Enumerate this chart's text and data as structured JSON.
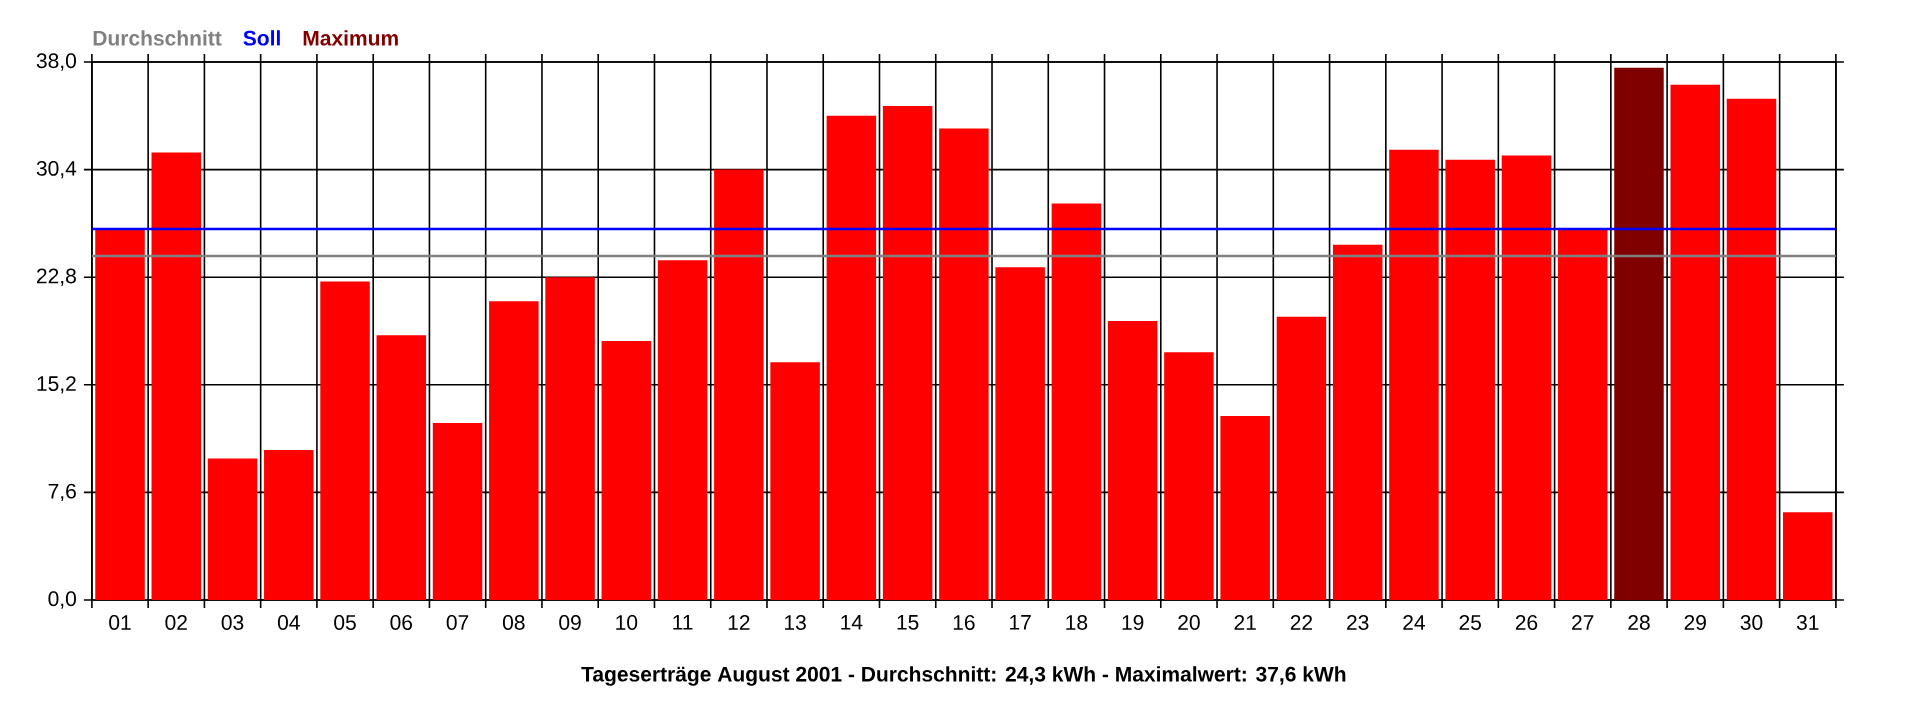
{
  "chart_data": {
    "type": "bar",
    "xlabel": "Tageserträge August 2001 - Durchschnitt: 24,3 kWh - Maximalwert: 37,6 kWh",
    "categories": [
      "01",
      "02",
      "03",
      "04",
      "05",
      "06",
      "07",
      "08",
      "09",
      "10",
      "11",
      "12",
      "13",
      "14",
      "15",
      "16",
      "17",
      "18",
      "19",
      "20",
      "21",
      "22",
      "23",
      "24",
      "25",
      "26",
      "27",
      "28",
      "29",
      "30",
      "31"
    ],
    "series": [
      {
        "color": "#ff0000",
        "values": [
          26.2,
          31.6,
          10.0,
          10.6,
          22.5,
          18.7,
          12.5,
          21.1,
          22.8,
          18.3,
          24.0,
          30.4,
          16.8,
          34.2,
          34.9,
          33.3,
          23.5,
          28.0,
          19.7,
          17.5,
          13.0,
          20.0,
          25.1,
          31.8,
          31.1,
          31.4,
          26.2,
          null,
          36.4,
          35.4,
          6.2
        ]
      },
      {
        "name": "Maximum",
        "color": "#800000",
        "values": [
          null,
          null,
          null,
          null,
          null,
          null,
          null,
          null,
          null,
          null,
          null,
          null,
          null,
          null,
          null,
          null,
          null,
          null,
          null,
          null,
          null,
          null,
          null,
          null,
          null,
          null,
          null,
          37.6,
          null,
          null,
          null
        ]
      }
    ],
    "ylim": [
      0,
      38
    ],
    "yticks": [
      {
        "value": 0,
        "label": "0,0"
      },
      {
        "value": 7.6,
        "label": "7,6"
      },
      {
        "value": 15.2,
        "label": "15,2"
      },
      {
        "value": 22.8,
        "label": "22,8"
      },
      {
        "value": 30.4,
        "label": "30,4"
      },
      {
        "value": 38,
        "label": "38,0"
      }
    ],
    "grid": true,
    "legend": "top left",
    "ref_lines": [
      {
        "axis": "y",
        "value": 24.3,
        "label": "Durchschnitt",
        "color": "#808080"
      },
      {
        "axis": "y",
        "value": 26.2,
        "label": "Soll",
        "color": "#0000ff"
      }
    ]
  }
}
